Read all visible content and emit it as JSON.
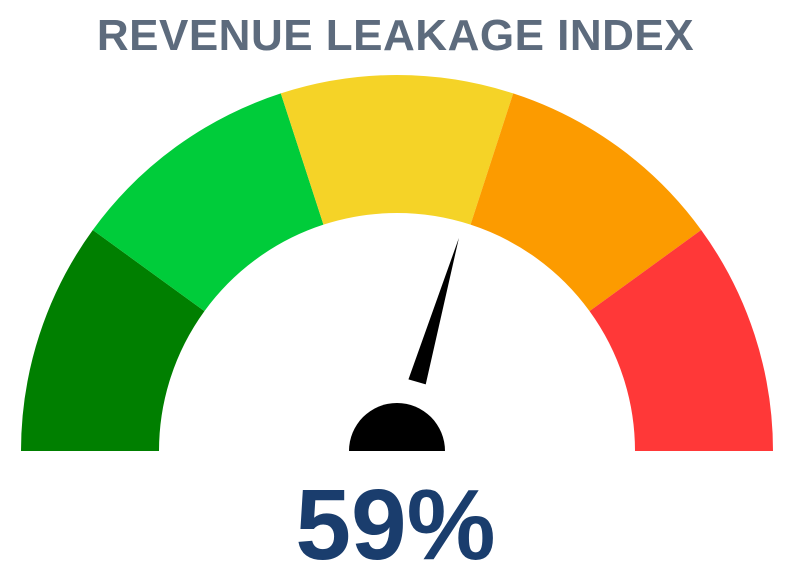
{
  "chart_data": {
    "type": "gauge",
    "title": "REVENUE LEAKAGE INDEX",
    "min": 0,
    "max": 100,
    "value": 59,
    "value_label": "59%",
    "bands": [
      {
        "from": 0,
        "to": 20,
        "color": "#007f00"
      },
      {
        "from": 20,
        "to": 40,
        "color": "#00cc3a"
      },
      {
        "from": 40,
        "to": 60,
        "color": "#f5d327"
      },
      {
        "from": 60,
        "to": 80,
        "color": "#fc9b00"
      },
      {
        "from": 80,
        "to": 100,
        "color": "#ff3838"
      }
    ],
    "needle_color": "#000000"
  }
}
